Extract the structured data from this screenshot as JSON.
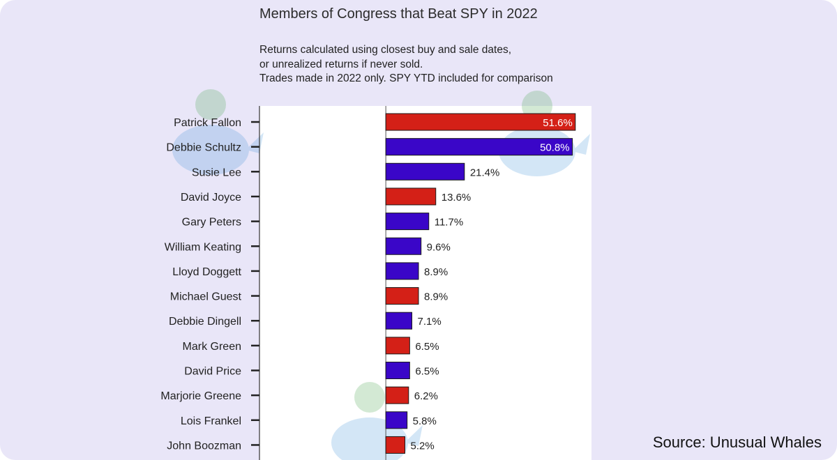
{
  "chart_data": {
    "type": "bar",
    "orientation": "horizontal",
    "title": "Members of Congress that Beat SPY in 2022",
    "subtitle": [
      "Returns calculated using closest buy and sale dates,",
      "or unrealized returns if never sold.",
      "Trades made in 2022 only. SPY YTD included for comparison"
    ],
    "categories": [
      "Patrick Fallon",
      "Debbie Schultz",
      "Susie Lee",
      "David Joyce",
      "Gary Peters",
      "William Keating",
      "Lloyd Doggett",
      "Michael Guest",
      "Debbie Dingell",
      "Mark Green",
      "David Price",
      "Marjorie Greene",
      "Lois Frankel",
      "John Boozman"
    ],
    "values": [
      51.6,
      50.8,
      21.4,
      13.6,
      11.7,
      9.6,
      8.9,
      8.9,
      7.1,
      6.5,
      6.5,
      6.2,
      5.8,
      5.2
    ],
    "labels": [
      "51.6%",
      "50.8%",
      "21.4%",
      "13.6%",
      "11.7%",
      "9.6%",
      "8.9%",
      "8.9%",
      "7.1%",
      "6.5%",
      "6.5%",
      "6.2%",
      "5.8%",
      "5.2%"
    ],
    "party_colors": [
      "red",
      "blue",
      "blue",
      "red",
      "blue",
      "blue",
      "blue",
      "red",
      "blue",
      "red",
      "blue",
      "red",
      "blue",
      "red"
    ],
    "colors": {
      "red": "#d42017",
      "blue": "#3a06c8",
      "edge": "#1a1a1a"
    },
    "xlim": [
      -34.4,
      56
    ],
    "xlabel": "",
    "ylabel": "",
    "grid": false,
    "legend": "none"
  },
  "footer": {
    "source": "Source: Unusual Whales"
  },
  "watermark": {
    "icon": "whale-icon"
  }
}
